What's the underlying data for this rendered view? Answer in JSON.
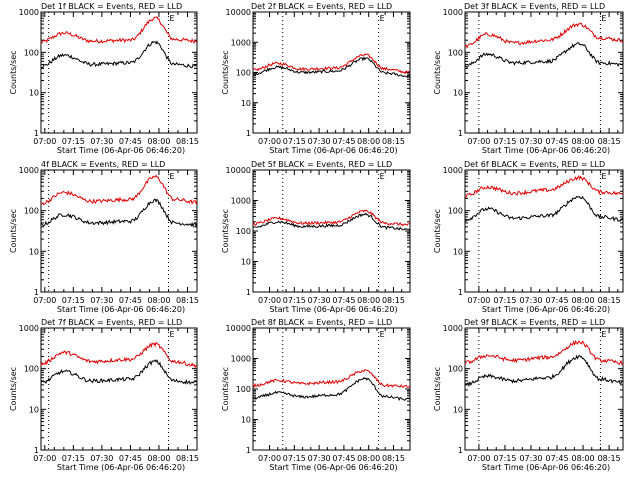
{
  "figure": {
    "background": "#ffffff",
    "colors": {
      "events": "#000000",
      "lld": "#e00000",
      "axis": "#000000"
    }
  },
  "chart_data": [
    {
      "type": "line",
      "title": "Det 1f BLACK = Events, RED = LLD",
      "xlabel": "Start Time (06-Apr-06 06:46:20)",
      "ylabel": "Counts/sec",
      "yscale": "log",
      "ylim": [
        1,
        1000
      ],
      "yticks": [
        "1",
        "10",
        "100",
        "1000"
      ],
      "xlim": [
        "06:58",
        "08:20"
      ],
      "xticks": [
        "07:00",
        "07:15",
        "07:30",
        "07:45",
        "08:00",
        "08:15"
      ],
      "markers": [
        {
          "time": "07:02"
        },
        {
          "time": "08:05",
          "label": "E"
        }
      ],
      "series": [
        {
          "color": "#e00000",
          "points": [
            [
              "06:58",
              180
            ],
            [
              "07:10",
              300
            ],
            [
              "07:25",
              190
            ],
            [
              "07:45",
              200
            ],
            [
              "07:58",
              700
            ],
            [
              "08:08",
              210
            ],
            [
              "08:20",
              190
            ]
          ]
        },
        {
          "color": "#000000",
          "points": [
            [
              "06:58",
              45
            ],
            [
              "07:10",
              85
            ],
            [
              "07:25",
              50
            ],
            [
              "07:45",
              55
            ],
            [
              "07:58",
              180
            ],
            [
              "08:08",
              50
            ],
            [
              "08:20",
              45
            ]
          ]
        }
      ]
    },
    {
      "type": "line",
      "title": "Det 2f BLACK = Events, RED = LLD",
      "xlabel": "Start Time (06-Apr-06 06:46:20)",
      "ylabel": "Counts/sec",
      "yscale": "log",
      "ylim": [
        1,
        10000
      ],
      "yticks": [
        "1",
        "10",
        "100",
        "1000",
        "10000"
      ],
      "xlim": [
        "06:50",
        "08:25"
      ],
      "xticks": [
        "07:00",
        "07:15",
        "07:30",
        "07:45",
        "08:00",
        "08:15"
      ],
      "markers": [
        {
          "time": "07:08"
        },
        {
          "time": "08:06",
          "label": "E"
        }
      ],
      "series": [
        {
          "color": "#e00000",
          "points": [
            [
              "06:50",
              120
            ],
            [
              "07:05",
              200
            ],
            [
              "07:20",
              130
            ],
            [
              "07:40",
              140
            ],
            [
              "07:58",
              380
            ],
            [
              "08:10",
              130
            ],
            [
              "08:25",
              100
            ]
          ]
        },
        {
          "color": "#000000",
          "points": [
            [
              "06:50",
              90
            ],
            [
              "07:05",
              150
            ],
            [
              "07:20",
              100
            ],
            [
              "07:40",
              110
            ],
            [
              "07:58",
              290
            ],
            [
              "08:10",
              95
            ],
            [
              "08:25",
              75
            ]
          ]
        }
      ]
    },
    {
      "type": "line",
      "title": "Det 3f BLACK = Events, RED = LLD",
      "xlabel": "Start Time (06-Apr-06 06:46:20)",
      "ylabel": "Counts/sec",
      "yscale": "log",
      "ylim": [
        1,
        1000
      ],
      "yticks": [
        "1",
        "10",
        "100",
        "1000"
      ],
      "xlim": [
        "06:52",
        "08:23"
      ],
      "xticks": [
        "07:00",
        "07:15",
        "07:30",
        "07:45",
        "08:00",
        "08:15"
      ],
      "markers": [
        {
          "time": "07:00"
        },
        {
          "time": "08:10",
          "label": "E"
        }
      ],
      "series": [
        {
          "color": "#e00000",
          "points": [
            [
              "06:52",
              140
            ],
            [
              "07:05",
              280
            ],
            [
              "07:20",
              170
            ],
            [
              "07:40",
              200
            ],
            [
              "07:58",
              500
            ],
            [
              "08:10",
              230
            ],
            [
              "08:23",
              200
            ]
          ]
        },
        {
          "color": "#000000",
          "points": [
            [
              "06:52",
              45
            ],
            [
              "07:05",
              90
            ],
            [
              "07:20",
              55
            ],
            [
              "07:40",
              60
            ],
            [
              "07:58",
              160
            ],
            [
              "08:10",
              55
            ],
            [
              "08:23",
              50
            ]
          ]
        }
      ]
    },
    {
      "type": "line",
      "title": "4f BLACK = Events, RED = LLD",
      "xlabel": "Start Time (06-Apr-06 06:46:20)",
      "ylabel": "Counts/sec",
      "yscale": "log",
      "ylim": [
        1,
        1000
      ],
      "yticks": [
        "1",
        "10",
        "100",
        "1000"
      ],
      "xlim": [
        "06:58",
        "08:20"
      ],
      "xticks": [
        "07:00",
        "07:15",
        "07:30",
        "07:45",
        "08:00",
        "08:15"
      ],
      "markers": [
        {
          "time": "07:02"
        },
        {
          "time": "08:05",
          "label": "E"
        }
      ],
      "series": [
        {
          "color": "#e00000",
          "points": [
            [
              "06:58",
              150
            ],
            [
              "07:10",
              280
            ],
            [
              "07:25",
              170
            ],
            [
              "07:45",
              190
            ],
            [
              "07:58",
              680
            ],
            [
              "08:08",
              190
            ],
            [
              "08:20",
              160
            ]
          ]
        },
        {
          "color": "#000000",
          "points": [
            [
              "06:58",
              45
            ],
            [
              "07:10",
              80
            ],
            [
              "07:25",
              50
            ],
            [
              "07:45",
              55
            ],
            [
              "07:58",
              180
            ],
            [
              "08:08",
              50
            ],
            [
              "08:20",
              45
            ]
          ]
        }
      ]
    },
    {
      "type": "line",
      "title": "Det 5f BLACK = Events, RED = LLD",
      "xlabel": "Start Time (06-Apr-06 06:46:20)",
      "ylabel": "Counts/sec",
      "yscale": "log",
      "ylim": [
        1,
        10000
      ],
      "yticks": [
        "1",
        "10",
        "100",
        "1000",
        "10000"
      ],
      "xlim": [
        "06:50",
        "08:25"
      ],
      "xticks": [
        "07:00",
        "07:15",
        "07:30",
        "07:45",
        "08:00",
        "08:15"
      ],
      "markers": [
        {
          "time": "07:08"
        },
        {
          "time": "08:06",
          "label": "E"
        }
      ],
      "series": [
        {
          "color": "#e00000",
          "points": [
            [
              "06:50",
              170
            ],
            [
              "07:05",
              260
            ],
            [
              "07:20",
              180
            ],
            [
              "07:40",
              190
            ],
            [
              "07:58",
              450
            ],
            [
              "08:10",
              180
            ],
            [
              "08:25",
              160
            ]
          ]
        },
        {
          "color": "#000000",
          "points": [
            [
              "06:50",
              130
            ],
            [
              "07:05",
              200
            ],
            [
              "07:20",
              140
            ],
            [
              "07:40",
              150
            ],
            [
              "07:58",
              350
            ],
            [
              "08:10",
              130
            ],
            [
              "08:25",
              110
            ]
          ]
        }
      ]
    },
    {
      "type": "line",
      "title": "Det 6f BLACK = Events, RED = LLD",
      "xlabel": "Start Time (06-Apr-06 06:46:20)",
      "ylabel": "Counts/sec",
      "yscale": "log",
      "ylim": [
        1,
        1000
      ],
      "yticks": [
        "1",
        "10",
        "100",
        "1000"
      ],
      "xlim": [
        "06:52",
        "08:23"
      ],
      "xticks": [
        "07:00",
        "07:15",
        "07:30",
        "07:45",
        "08:00",
        "08:15"
      ],
      "markers": [
        {
          "time": "07:00"
        },
        {
          "time": "08:10",
          "label": "E"
        }
      ],
      "series": [
        {
          "color": "#e00000",
          "points": [
            [
              "06:52",
              230
            ],
            [
              "07:05",
              380
            ],
            [
              "07:20",
              270
            ],
            [
              "07:40",
              320
            ],
            [
              "07:58",
              650
            ],
            [
              "08:10",
              290
            ],
            [
              "08:23",
              260
            ]
          ]
        },
        {
          "color": "#000000",
          "points": [
            [
              "06:52",
              60
            ],
            [
              "07:05",
              110
            ],
            [
              "07:20",
              65
            ],
            [
              "07:40",
              75
            ],
            [
              "07:58",
              220
            ],
            [
              "08:10",
              70
            ],
            [
              "08:23",
              60
            ]
          ]
        }
      ]
    },
    {
      "type": "line",
      "title": "Det 7f BLACK = Events, RED = LLD",
      "xlabel": "Start Time (06-Apr-06 06:46:20)",
      "ylabel": "Counts/sec",
      "yscale": "log",
      "ylim": [
        1,
        1000
      ],
      "yticks": [
        "1",
        "10",
        "100",
        "1000"
      ],
      "xlim": [
        "06:58",
        "08:20"
      ],
      "xticks": [
        "07:00",
        "07:15",
        "07:30",
        "07:45",
        "08:00",
        "08:15"
      ],
      "markers": [
        {
          "time": "07:02"
        },
        {
          "time": "08:05",
          "label": "E"
        }
      ],
      "series": [
        {
          "color": "#e00000",
          "points": [
            [
              "06:58",
              130
            ],
            [
              "07:10",
              250
            ],
            [
              "07:25",
              150
            ],
            [
              "07:45",
              170
            ],
            [
              "07:58",
              400
            ],
            [
              "08:08",
              150
            ],
            [
              "08:20",
              120
            ]
          ]
        },
        {
          "color": "#000000",
          "points": [
            [
              "06:58",
              45
            ],
            [
              "07:10",
              85
            ],
            [
              "07:25",
              50
            ],
            [
              "07:45",
              55
            ],
            [
              "07:58",
              150
            ],
            [
              "08:08",
              50
            ],
            [
              "08:20",
              45
            ]
          ]
        }
      ]
    },
    {
      "type": "line",
      "title": "Det 8f BLACK = Events, RED = LLD",
      "xlabel": "Start Time (06-Apr-06 06:46:20)",
      "ylabel": "Counts/sec",
      "yscale": "log",
      "ylim": [
        1,
        10000
      ],
      "yticks": [
        "1",
        "10",
        "100",
        "1000",
        "10000"
      ],
      "xlim": [
        "06:50",
        "08:25"
      ],
      "xticks": [
        "07:00",
        "07:15",
        "07:30",
        "07:45",
        "08:00",
        "08:15"
      ],
      "markers": [
        {
          "time": "07:08"
        },
        {
          "time": "08:06",
          "label": "E"
        }
      ],
      "series": [
        {
          "color": "#e00000",
          "points": [
            [
              "06:50",
              130
            ],
            [
              "07:05",
              190
            ],
            [
              "07:20",
              150
            ],
            [
              "07:40",
              170
            ],
            [
              "07:58",
              400
            ],
            [
              "08:10",
              130
            ],
            [
              "08:25",
              120
            ]
          ]
        },
        {
          "color": "#000000",
          "points": [
            [
              "06:50",
              50
            ],
            [
              "07:05",
              75
            ],
            [
              "07:20",
              55
            ],
            [
              "07:40",
              65
            ],
            [
              "07:58",
              220
            ],
            [
              "08:10",
              55
            ],
            [
              "08:25",
              45
            ]
          ]
        }
      ]
    },
    {
      "type": "line",
      "title": "Det 9f BLACK = Events, RED = LLD",
      "xlabel": "Start Time (06-Apr-06 06:46:20)",
      "ylabel": "Counts/sec",
      "yscale": "log",
      "ylim": [
        1,
        1000
      ],
      "yticks": [
        "1",
        "10",
        "100",
        "1000"
      ],
      "xlim": [
        "06:52",
        "08:23"
      ],
      "xticks": [
        "07:00",
        "07:15",
        "07:30",
        "07:45",
        "08:00",
        "08:15"
      ],
      "markers": [
        {
          "time": "07:00"
        },
        {
          "time": "08:10",
          "label": "E"
        }
      ],
      "series": [
        {
          "color": "#e00000",
          "points": [
            [
              "06:52",
              140
            ],
            [
              "07:05",
              210
            ],
            [
              "07:20",
              160
            ],
            [
              "07:40",
              190
            ],
            [
              "07:58",
              450
            ],
            [
              "08:10",
              160
            ],
            [
              "08:23",
              140
            ]
          ]
        },
        {
          "color": "#000000",
          "points": [
            [
              "06:52",
              40
            ],
            [
              "07:05",
              65
            ],
            [
              "07:20",
              50
            ],
            [
              "07:40",
              60
            ],
            [
              "07:58",
              200
            ],
            [
              "08:10",
              55
            ],
            [
              "08:23",
              45
            ]
          ]
        }
      ]
    }
  ]
}
